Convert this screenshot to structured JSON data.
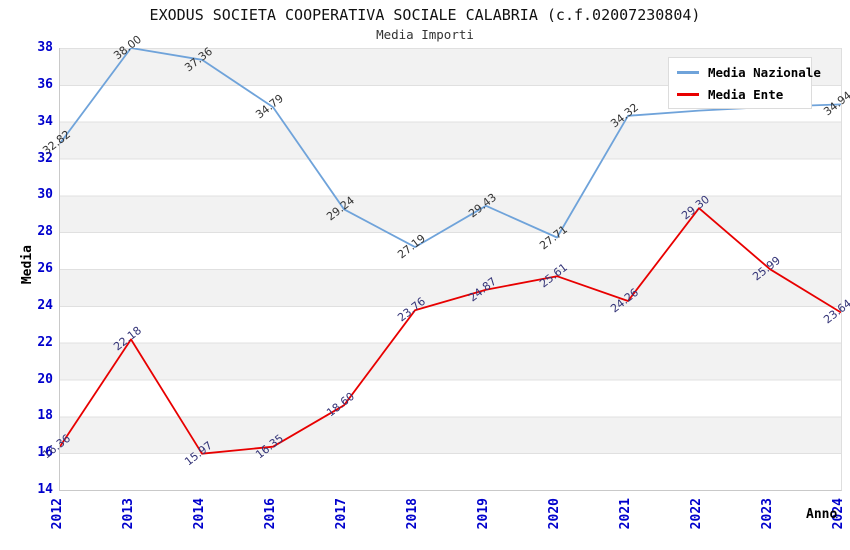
{
  "header": {
    "title": "EXODUS SOCIETA COOPERATIVA SOCIALE CALABRIA (c.f.02007230804)",
    "subtitle": "Media Importi"
  },
  "legend": {
    "items": [
      {
        "label": "Media Nazionale",
        "color": "#6fa3da"
      },
      {
        "label": "Media Ente",
        "color": "#e80000"
      }
    ]
  },
  "chart_data": {
    "type": "line",
    "title": "EXODUS SOCIETA COOPERATIVA SOCIALE CALABRIA (c.f.02007230804)",
    "subtitle": "Media Importi",
    "xlabel": "Anno",
    "ylabel": "Media",
    "x": [
      "2012",
      "2013",
      "2014",
      "2016",
      "2017",
      "2018",
      "2019",
      "2020",
      "2021",
      "2022",
      "2023",
      "2024"
    ],
    "series": [
      {
        "name": "Media Nazionale",
        "color": "#6fa3da",
        "label_color": "#333333",
        "values": [
          32.82,
          38.0,
          37.36,
          34.79,
          29.24,
          27.19,
          29.43,
          27.71,
          34.32,
          34.6,
          34.8,
          34.94
        ],
        "labels": [
          "32.82",
          "38.00",
          "37.36",
          "34.79",
          "29.24",
          "27.19",
          "29.43",
          "27.71",
          "34.32",
          "",
          "",
          "34.94"
        ]
      },
      {
        "name": "Media Ente",
        "color": "#e80000",
        "label_color": "#333377",
        "values": [
          16.36,
          22.18,
          15.97,
          16.35,
          18.6,
          23.76,
          24.87,
          25.61,
          24.26,
          29.3,
          25.99,
          23.64
        ],
        "labels": [
          "16.36",
          "22.18",
          "15.97",
          "16.35",
          "18.60",
          "23.76",
          "24.87",
          "25.61",
          "24.26",
          "29.30",
          "25.99",
          "23.64"
        ]
      }
    ],
    "ylim": [
      14,
      38
    ],
    "yticks": [
      38,
      36,
      34,
      32,
      30,
      28,
      26,
      24,
      22,
      20,
      18,
      16,
      14
    ],
    "grid": "horizontal-alternating-bands",
    "legend_position": "top-right",
    "colors": {
      "axis_tick_label": "#0000cc",
      "band_gray": "#f2f2f2",
      "gridline": "#e0e0e0",
      "plot_border": "#c9c9c9"
    }
  }
}
